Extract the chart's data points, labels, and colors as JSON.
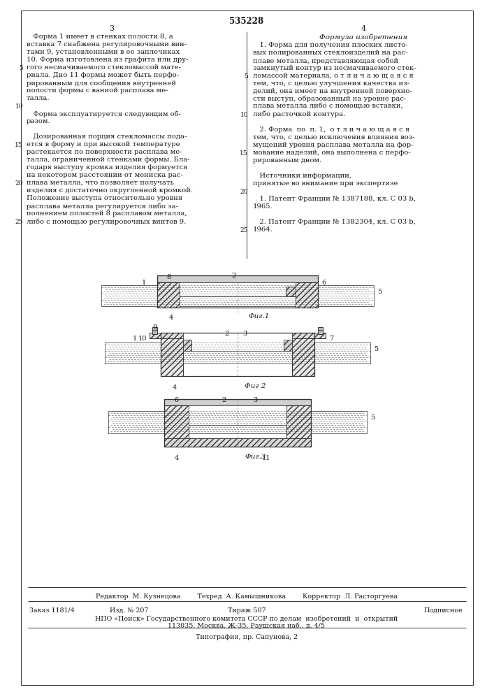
{
  "patent_number": "535228",
  "page_numbers": [
    "3",
    "4"
  ],
  "left_column_text": [
    "   Форма 1 имеет в стенках полости 8, а",
    "вставка 7 снабжена регулировочными вин-",
    "тами 9, установленными в ее заплечиках",
    "10. Форма изготовлена из графита или дру-",
    "гого несмачиваемого стекломассой мате-",
    "риала. Дно 11 формы может быть перфо-",
    "рированным для сообщения внутренней",
    "полости формы с ванной расплава ме-",
    "талла.",
    "",
    "   Форма эксплуатируется следующим об-",
    "разом.",
    "",
    "   Дозированная порция стекломассы пода-",
    "ется в форму и при высокой температуре",
    "растекается по поверхности расплава ме-",
    "талла, ограниченной стенками формы. Бла-",
    "годаря выступу кромка изделия формуется",
    "на некотором расстоянии от мениска рас-",
    "плава металла, что позволяет получать",
    "изделия с достаточно округленной кромкой.",
    "Положение выступа относительно уровня",
    "расплава металла регулируется либо за-",
    "полнением полостей 8 расплавом металла,",
    "либо с помощью регулировочных винтов 9."
  ],
  "right_column_header": "Формула изобретения",
  "right_column_text": [
    "   1. Форма для получения плоских листо-",
    "вых полированных стеклоизделий на рас-",
    "плаве металла, представляющая собой",
    "замкнутый контур из несмачиваемого стек-",
    "ломассой материала, о т л и ч а ю щ а я с я",
    "тем, что, с целью улучшения качества из-",
    "делий, она имеет на внутренней поверхно-",
    "сти выступ, образованный на уровне рас-",
    "плава металла либо с помощью вставки,",
    "либо расточкой контура.",
    "",
    "   2. Форма  по  п. 1,  о т л и ч а ю щ а я с я",
    "тем, что, с целью исключения влияния воз-",
    "мущений уровня расплава металла на фор-",
    "мование наделий, она выполнена с перфо-",
    "рированным дном.",
    "",
    "   Источники информации,",
    "принятые во внимание при экспертизе",
    "",
    "   1. Патент Франции № 1387188, кл. С 03 b,",
    "1965.",
    "",
    "   2. Патент Франции № 1382304, кл. С 03 b,",
    "1964."
  ],
  "editor_line": "Редактор  М. Кузнецова        Техред  А. Камышникова        Корректор  Л. Расторгуева",
  "order_line1": "Заказ 1181/4",
  "order_line2": "Изд. № 207",
  "order_line3": "Тираж 507",
  "order_line4": "Подписное",
  "org_line": "НПО «Поиск» Государственного комитета СССР по делам  изобретений  и  открытий",
  "address_line": "113035, Москва, Ж-35, Раушская наб., д. 4/5",
  "print_line": "Типография, пр. Сапунова, 2",
  "fig1_label": "Фиг.1",
  "fig2_label": "Фиг 2",
  "fig3_label": "Фиг.3",
  "bg_color": "#ffffff",
  "text_color": "#1a1a1a",
  "line_color": "#333333"
}
